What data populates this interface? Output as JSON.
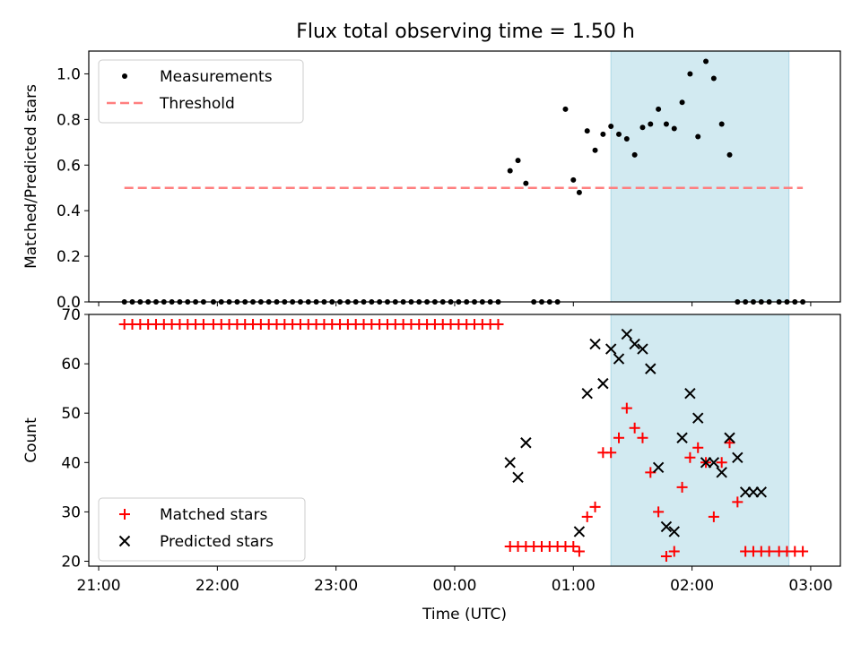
{
  "title": "Flux total observing time = 1.50 h",
  "chart_data": [
    {
      "type": "scatter",
      "panel": "top",
      "ylabel": "Matched/Predicted stars",
      "ylim": [
        0,
        1.1
      ],
      "yticks": [
        0.0,
        0.2,
        0.4,
        0.6,
        0.8,
        1.0
      ],
      "ytick_labels": [
        "0.0",
        "0.2",
        "0.4",
        "0.6",
        "0.8",
        "1.0"
      ],
      "legend": {
        "position": "top-left",
        "entries": [
          "Measurements",
          "Threshold"
        ]
      },
      "series": [
        {
          "name": "Measurements",
          "color": "#000000",
          "marker": "dot",
          "x": [
            "21:13",
            "21:17",
            "21:21",
            "21:25",
            "21:29",
            "21:33",
            "21:37",
            "21:41",
            "21:45",
            "21:49",
            "21:53",
            "21:58",
            "22:02",
            "22:06",
            "22:10",
            "22:14",
            "22:18",
            "22:22",
            "22:26",
            "22:30",
            "22:34",
            "22:38",
            "22:42",
            "22:46",
            "22:50",
            "22:54",
            "22:58",
            "23:02",
            "23:06",
            "23:10",
            "23:14",
            "23:18",
            "23:22",
            "23:26",
            "23:30",
            "23:34",
            "23:38",
            "23:42",
            "23:46",
            "23:50",
            "23:54",
            "23:58",
            "00:02",
            "00:06",
            "00:10",
            "00:14",
            "00:18",
            "00:22",
            "00:28",
            "00:32",
            "00:36",
            "00:40",
            "00:44",
            "00:48",
            "00:52",
            "00:56",
            "01:00",
            "01:03",
            "01:07",
            "01:11",
            "01:15",
            "01:19",
            "01:23",
            "01:27",
            "01:31",
            "01:35",
            "01:39",
            "01:43",
            "01:47",
            "01:51",
            "01:55",
            "01:59",
            "02:03",
            "02:07",
            "02:11",
            "02:15",
            "02:19",
            "02:23",
            "02:27",
            "02:31",
            "02:35",
            "02:39",
            "02:44",
            "02:48",
            "02:52",
            "02:56"
          ],
          "y": [
            0,
            0,
            0,
            0,
            0,
            0,
            0,
            0,
            0,
            0,
            0,
            0,
            0,
            0,
            0,
            0,
            0,
            0,
            0,
            0,
            0,
            0,
            0,
            0,
            0,
            0,
            0,
            0,
            0,
            0,
            0,
            0,
            0,
            0,
            0,
            0,
            0,
            0,
            0,
            0,
            0,
            0,
            0,
            0,
            0,
            0,
            0,
            0,
            0.575,
            0.62,
            0.52,
            0,
            0,
            0,
            0,
            0.845,
            0.535,
            0.48,
            0.75,
            0.665,
            0.735,
            0.77,
            0.735,
            0.715,
            0.645,
            0.765,
            0.78,
            0.845,
            0.78,
            0.76,
            0.875,
            1.0,
            0.725,
            1.055,
            0.98,
            0.78,
            0.645,
            0,
            0,
            0,
            0,
            0,
            0,
            0,
            0,
            0
          ]
        },
        {
          "name": "Threshold",
          "color": "#ff7f7f",
          "style": "dashed",
          "x": [
            "21:13",
            "02:56"
          ],
          "y": [
            0.5,
            0.5
          ]
        }
      ],
      "shaded_region": {
        "x": [
          "01:19",
          "02:49"
        ],
        "color": "#add8e6"
      }
    },
    {
      "type": "scatter",
      "panel": "bottom",
      "xlabel": "Time (UTC)",
      "ylabel": "Count",
      "ylim": [
        19,
        70
      ],
      "yticks": [
        20,
        30,
        40,
        50,
        60,
        70
      ],
      "xticks": [
        "21:00",
        "22:00",
        "23:00",
        "00:00",
        "01:00",
        "02:00",
        "03:00"
      ],
      "xlim": [
        "20:55",
        "03:15"
      ],
      "legend": {
        "position": "bottom-left",
        "entries": [
          "Matched stars",
          "Predicted stars"
        ]
      },
      "series": [
        {
          "name": "Matched stars",
          "color": "#ff0000",
          "marker": "plus",
          "x": [
            "21:13",
            "21:17",
            "21:21",
            "21:25",
            "21:29",
            "21:33",
            "21:37",
            "21:41",
            "21:45",
            "21:49",
            "21:53",
            "21:58",
            "22:02",
            "22:06",
            "22:10",
            "22:14",
            "22:18",
            "22:22",
            "22:26",
            "22:30",
            "22:34",
            "22:38",
            "22:42",
            "22:46",
            "22:50",
            "22:54",
            "22:58",
            "23:02",
            "23:06",
            "23:10",
            "23:14",
            "23:18",
            "23:22",
            "23:26",
            "23:30",
            "23:34",
            "23:38",
            "23:42",
            "23:46",
            "23:50",
            "23:54",
            "23:58",
            "00:02",
            "00:06",
            "00:10",
            "00:14",
            "00:18",
            "00:22",
            "00:28",
            "00:32",
            "00:36",
            "00:40",
            "00:44",
            "00:48",
            "00:52",
            "00:56",
            "01:00",
            "01:03",
            "01:07",
            "01:11",
            "01:15",
            "01:19",
            "01:23",
            "01:27",
            "01:31",
            "01:35",
            "01:39",
            "01:43",
            "01:47",
            "01:51",
            "01:55",
            "01:59",
            "02:03",
            "02:07",
            "02:11",
            "02:15",
            "02:19",
            "02:23",
            "02:27",
            "02:31",
            "02:35",
            "02:39",
            "02:44",
            "02:48",
            "02:52",
            "02:56"
          ],
          "y": [
            68,
            68,
            68,
            68,
            68,
            68,
            68,
            68,
            68,
            68,
            68,
            68,
            68,
            68,
            68,
            68,
            68,
            68,
            68,
            68,
            68,
            68,
            68,
            68,
            68,
            68,
            68,
            68,
            68,
            68,
            68,
            68,
            68,
            68,
            68,
            68,
            68,
            68,
            68,
            68,
            68,
            68,
            68,
            68,
            68,
            68,
            68,
            68,
            23,
            23,
            23,
            23,
            23,
            23,
            23,
            23,
            23,
            22,
            29,
            31,
            42,
            42,
            45,
            51,
            47,
            45,
            38,
            30,
            21,
            22,
            35,
            41,
            43,
            40,
            29,
            40,
            44,
            32,
            22,
            22,
            22,
            22,
            22,
            22,
            22,
            22
          ]
        },
        {
          "name": "Predicted stars",
          "color": "#000000",
          "marker": "x",
          "x": [
            "00:28",
            "00:32",
            "00:36",
            "01:03",
            "01:07",
            "01:11",
            "01:15",
            "01:19",
            "01:23",
            "01:27",
            "01:31",
            "01:35",
            "01:39",
            "01:43",
            "01:47",
            "01:51",
            "01:55",
            "01:59",
            "02:03",
            "02:07",
            "02:11",
            "02:15",
            "02:19",
            "02:23",
            "02:27",
            "02:31",
            "02:35"
          ],
          "y": [
            40,
            37,
            44,
            26,
            54,
            64,
            56,
            63,
            61,
            66,
            64,
            63,
            59,
            39,
            27,
            26,
            45,
            54,
            49,
            40,
            40,
            38,
            45,
            41,
            34,
            34,
            34
          ]
        }
      ],
      "shaded_region": {
        "x": [
          "01:19",
          "02:49"
        ],
        "color": "#add8e6"
      }
    }
  ]
}
